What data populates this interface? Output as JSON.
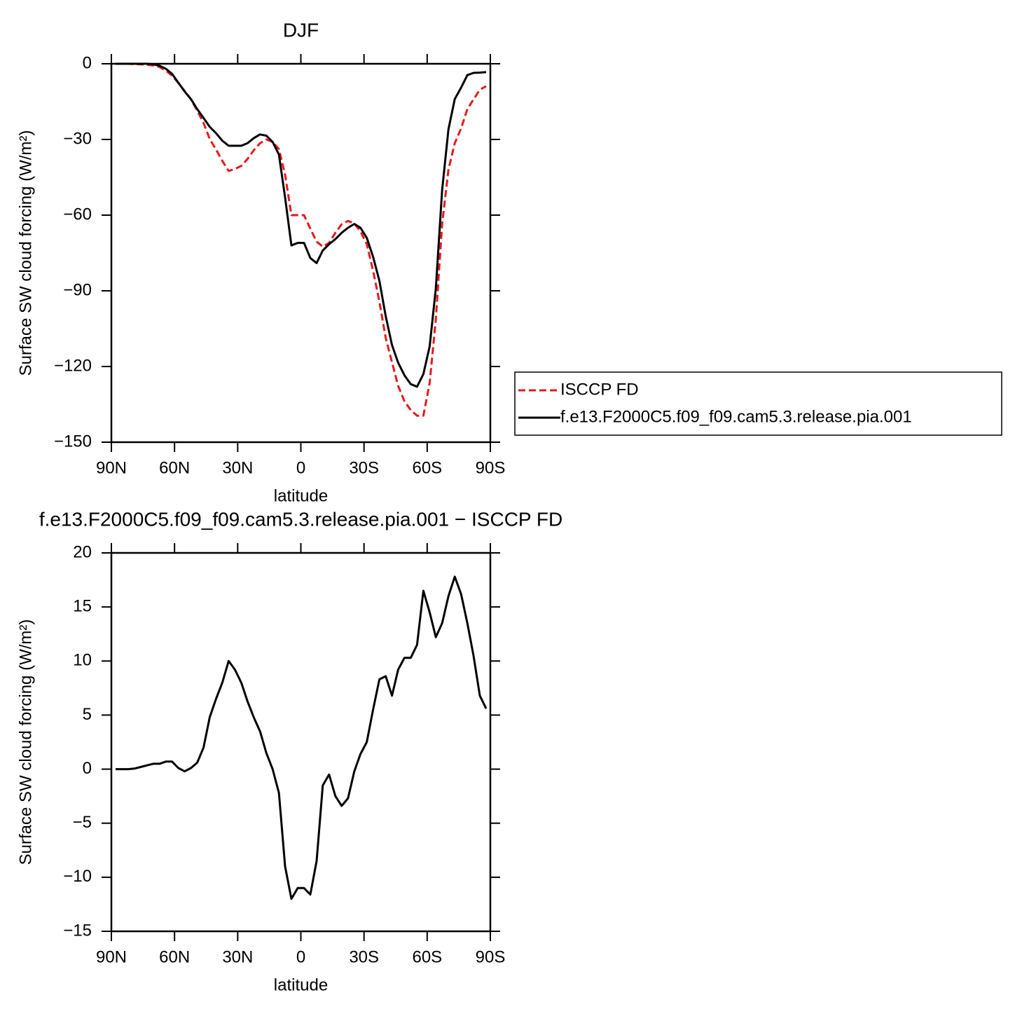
{
  "chart_data": [
    {
      "type": "line",
      "title": "DJF",
      "xlabel": "latitude",
      "ylabel": "Surface SW cloud forcing (W/m²)",
      "x": [
        88,
        85.0,
        82.0,
        79.1,
        76.1,
        73.1,
        70.1,
        67.1,
        64.1,
        61.2,
        58.2,
        55.2,
        52.2,
        49.2,
        46.2,
        43.3,
        40.3,
        37.3,
        34.3,
        31.3,
        28.3,
        25.4,
        22.4,
        19.4,
        16.4,
        13.4,
        10.4,
        7.5,
        4.5,
        1.5,
        -1.5,
        -4.5,
        -7.5,
        -10.4,
        -13.4,
        -16.4,
        -19.4,
        -22.4,
        -25.4,
        -28.3,
        -31.3,
        -34.3,
        -37.3,
        -40.3,
        -43.3,
        -46.2,
        -49.2,
        -52.2,
        -55.2,
        -58.2,
        -61.2,
        -64.1,
        -67.1,
        -70.1,
        -73.1,
        -76.1,
        -79.1,
        -82.0,
        -85.0,
        -88
      ],
      "series": [
        {
          "name": "ISCCP FD",
          "color": "#e41a1c",
          "line_style": "dashed",
          "values": [
            0,
            0,
            0,
            -0.1,
            -0.2,
            -0.4,
            -0.7,
            -1.3,
            -2.7,
            -4.7,
            -7.6,
            -10.8,
            -14.1,
            -18.6,
            -23.5,
            -29.8,
            -34,
            -38.5,
            -42.5,
            -41.7,
            -40.5,
            -37.8,
            -34.3,
            -31.5,
            -30,
            -31,
            -33.8,
            -44,
            -60,
            -60,
            -60,
            -65.4,
            -70.5,
            -72.5,
            -71,
            -67,
            -63.6,
            -62.3,
            -63.3,
            -66.4,
            -71.5,
            -82,
            -94.3,
            -108.6,
            -118.3,
            -127.7,
            -133.8,
            -137.3,
            -139.5,
            -139.5,
            -126.5,
            -101.2,
            -63.5,
            -42,
            -31.5,
            -25.7,
            -18,
            -14.1,
            -10.3,
            -8.9
          ]
        },
        {
          "name": "f.e13.F2000C5.f09_f09.cam5.3.release.pia.001",
          "color": "#000000",
          "line_style": "solid",
          "values": [
            0,
            0,
            0,
            0,
            0,
            0,
            -0.2,
            -0.8,
            -2,
            -4,
            -7.5,
            -11,
            -14,
            -18,
            -21.5,
            -25,
            -27.5,
            -30.5,
            -32.5,
            -32.5,
            -32.5,
            -31.5,
            -29.5,
            -28,
            -28.5,
            -31,
            -36,
            -53,
            -72,
            -71,
            -71,
            -77,
            -79,
            -74,
            -71.5,
            -69.5,
            -67,
            -65,
            -63.5,
            -65,
            -69,
            -76.5,
            -86,
            -100,
            -111.5,
            -118.5,
            -123.5,
            -127,
            -128,
            -123,
            -112,
            -89,
            -50,
            -26,
            -14,
            -9.5,
            -4.5,
            -3.6,
            -3.5,
            -3.3
          ]
        }
      ],
      "xlim": [
        90,
        -90
      ],
      "xticks": [
        {
          "value": 90,
          "label": "90N"
        },
        {
          "value": 60,
          "label": "60N"
        },
        {
          "value": 30,
          "label": "30N"
        },
        0,
        {
          "value": -30,
          "label": "30S"
        },
        {
          "value": -60,
          "label": "60S"
        },
        {
          "value": -90,
          "label": "90S"
        }
      ],
      "ylim": [
        -150,
        0
      ],
      "yticks": [
        0,
        {
          "value": -30,
          "label": "−30"
        },
        {
          "value": -60,
          "label": "−60"
        },
        {
          "value": -90,
          "label": "−90"
        },
        {
          "value": -120,
          "label": "−120"
        },
        {
          "value": -150,
          "label": "−150"
        }
      ],
      "legend": "right"
    },
    {
      "type": "line",
      "title": "f.e13.F2000C5.f09_f09.cam5.3.release.pia.001 − ISCCP FD",
      "xlabel": "latitude",
      "ylabel": "Surface SW cloud forcing (W/m²)",
      "x": [
        88,
        85.0,
        82.0,
        79.1,
        76.1,
        73.1,
        70.1,
        67.1,
        64.1,
        61.2,
        58.2,
        55.2,
        52.2,
        49.2,
        46.2,
        43.3,
        40.3,
        37.3,
        34.3,
        31.3,
        28.3,
        25.4,
        22.4,
        19.4,
        16.4,
        13.4,
        10.4,
        7.5,
        4.5,
        1.5,
        -1.5,
        -4.5,
        -7.5,
        -10.4,
        -13.4,
        -16.4,
        -19.4,
        -22.4,
        -25.4,
        -28.3,
        -31.3,
        -34.3,
        -37.3,
        -40.3,
        -43.3,
        -46.2,
        -49.2,
        -52.2,
        -55.2,
        -58.2,
        -61.2,
        -64.1,
        -67.1,
        -70.1,
        -73.1,
        -76.1,
        -79.1,
        -82.0,
        -85.0,
        -88
      ],
      "series": [
        {
          "color": "#000000",
          "line_style": "solid",
          "values": [
            0,
            0,
            0,
            0.05,
            0.2,
            0.35,
            0.5,
            0.5,
            0.7,
            0.7,
            0.1,
            -0.2,
            0.1,
            0.6,
            2,
            4.8,
            6.5,
            8,
            10,
            9.2,
            8,
            6.3,
            4.8,
            3.5,
            1.5,
            0,
            -2.2,
            -9,
            -12,
            -11,
            -11,
            -11.6,
            -8.5,
            -1.5,
            -0.5,
            -2.5,
            -3.4,
            -2.7,
            -0.2,
            1.4,
            2.5,
            5.5,
            8.3,
            8.6,
            6.8,
            9.2,
            10.3,
            10.3,
            11.5,
            16.5,
            14.5,
            12.2,
            13.5,
            16,
            17.8,
            16.2,
            13.5,
            10.5,
            6.8,
            5.6
          ]
        }
      ],
      "xlim": [
        90,
        -90
      ],
      "xticks": [
        {
          "value": 90,
          "label": "90N"
        },
        {
          "value": 60,
          "label": "60N"
        },
        {
          "value": 30,
          "label": "30N"
        },
        0,
        {
          "value": -30,
          "label": "30S"
        },
        {
          "value": -60,
          "label": "60S"
        },
        {
          "value": -90,
          "label": "90S"
        }
      ],
      "ylim": [
        -15,
        20
      ],
      "yticks": [
        20,
        15,
        10,
        5,
        0,
        {
          "value": -5,
          "label": "−5"
        },
        {
          "value": -10,
          "label": "−10"
        },
        {
          "value": -15,
          "label": "−15"
        }
      ]
    }
  ]
}
